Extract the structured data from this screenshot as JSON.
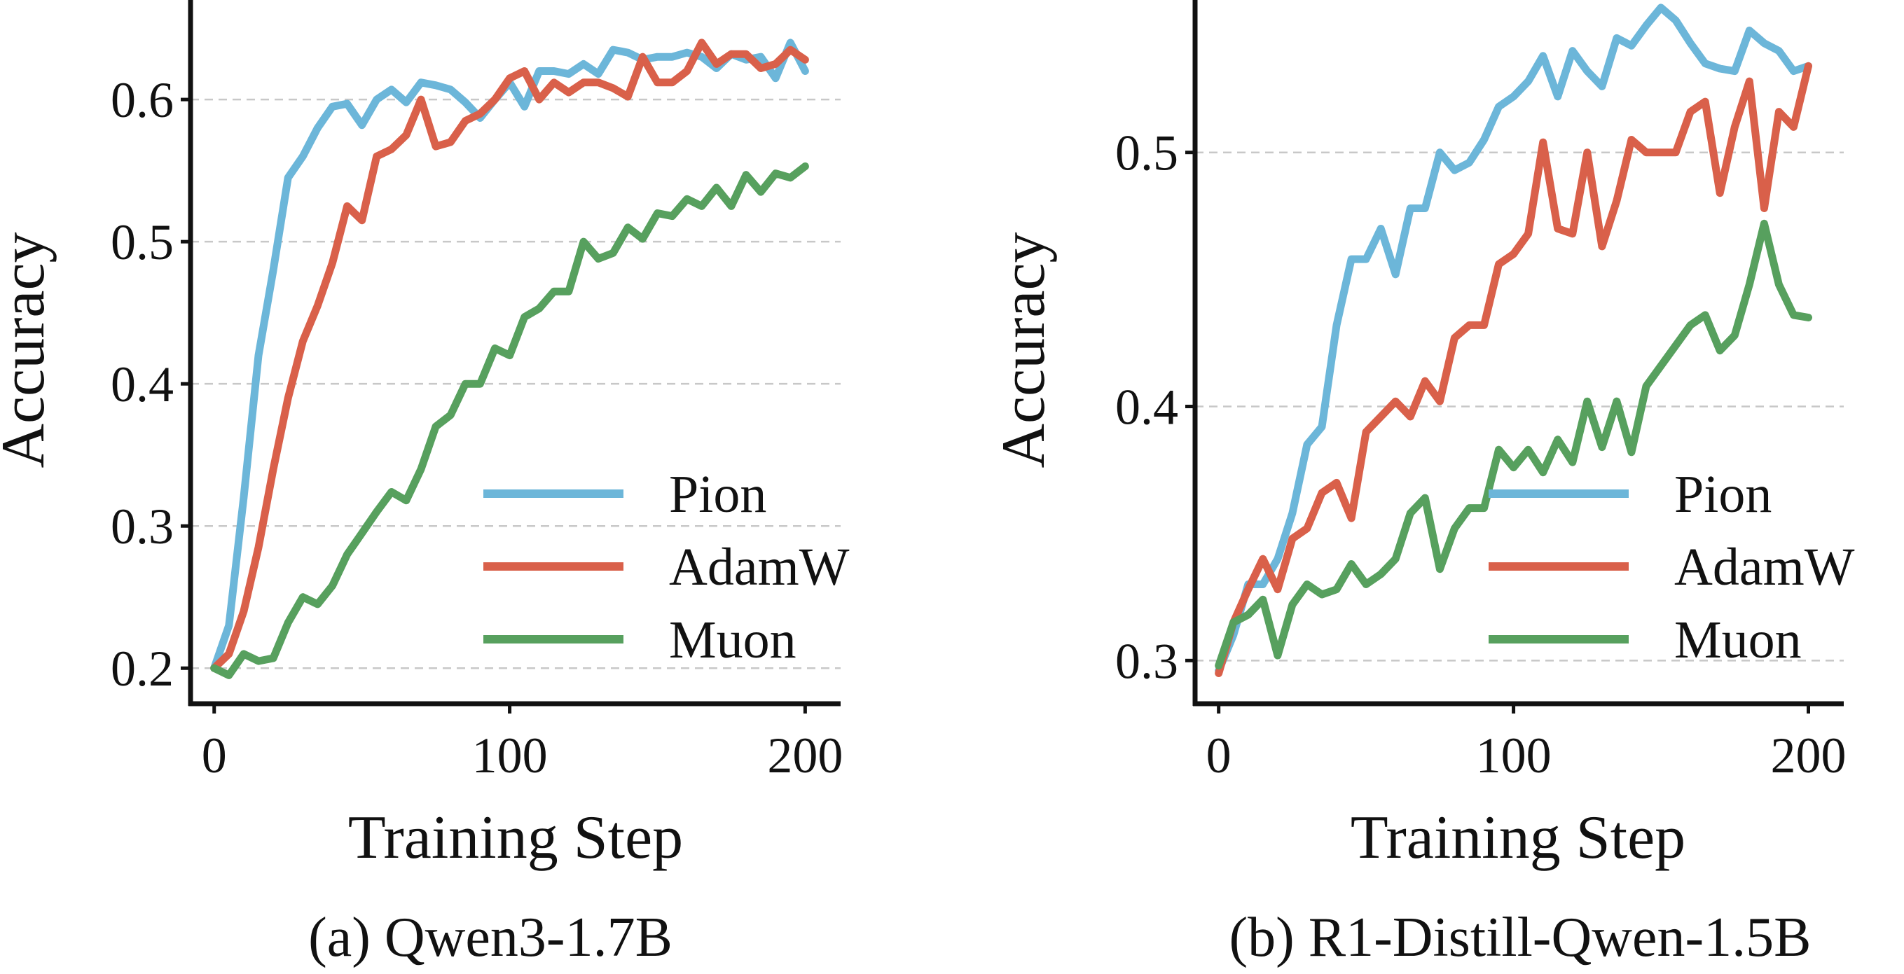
{
  "chart_data": [
    {
      "type": "line",
      "caption": "(a) Qwen3-1.7B",
      "xlabel": "Training Step",
      "ylabel": "Accuracy",
      "xlim": [
        -8,
        212
      ],
      "ylim": [
        0.175,
        0.67
      ],
      "xticks": [
        0,
        100,
        200
      ],
      "yticks": [
        0.2,
        0.3,
        0.4,
        0.5,
        0.6
      ],
      "ytick_labels": [
        "0.2",
        "0.3",
        "0.4",
        "0.5",
        "0.6"
      ],
      "grid": "horizontal dashed",
      "legend_position": "lower-right",
      "x": [
        0,
        5,
        10,
        15,
        20,
        25,
        30,
        35,
        40,
        45,
        50,
        55,
        60,
        65,
        70,
        75,
        80,
        85,
        90,
        95,
        100,
        105,
        110,
        115,
        120,
        125,
        130,
        135,
        140,
        145,
        150,
        155,
        160,
        165,
        170,
        175,
        180,
        185,
        190,
        195,
        200
      ],
      "series": [
        {
          "name": "Pion",
          "color": "#6cb6d9",
          "values": [
            0.2,
            0.23,
            0.32,
            0.42,
            0.48,
            0.545,
            0.56,
            0.58,
            0.595,
            0.597,
            0.582,
            0.6,
            0.607,
            0.598,
            0.612,
            0.61,
            0.607,
            0.598,
            0.587,
            0.6,
            0.612,
            0.595,
            0.62,
            0.62,
            0.618,
            0.625,
            0.618,
            0.635,
            0.633,
            0.628,
            0.63,
            0.63,
            0.633,
            0.63,
            0.622,
            0.632,
            0.628,
            0.63,
            0.615,
            0.64,
            0.62
          ]
        },
        {
          "name": "AdamW",
          "color": "#d9604a",
          "values": [
            0.2,
            0.21,
            0.24,
            0.285,
            0.34,
            0.39,
            0.43,
            0.455,
            0.485,
            0.525,
            0.515,
            0.56,
            0.565,
            0.575,
            0.6,
            0.567,
            0.57,
            0.585,
            0.59,
            0.6,
            0.615,
            0.62,
            0.6,
            0.612,
            0.605,
            0.612,
            0.612,
            0.608,
            0.602,
            0.63,
            0.612,
            0.612,
            0.62,
            0.64,
            0.625,
            0.632,
            0.632,
            0.622,
            0.625,
            0.635,
            0.628
          ]
        },
        {
          "name": "Muon",
          "color": "#57a05e",
          "values": [
            0.2,
            0.195,
            0.21,
            0.205,
            0.207,
            0.232,
            0.25,
            0.245,
            0.258,
            0.28,
            0.295,
            0.31,
            0.324,
            0.318,
            0.34,
            0.37,
            0.378,
            0.4,
            0.4,
            0.425,
            0.42,
            0.447,
            0.453,
            0.465,
            0.465,
            0.5,
            0.488,
            0.492,
            0.51,
            0.502,
            0.52,
            0.518,
            0.53,
            0.525,
            0.538,
            0.525,
            0.547,
            0.535,
            0.548,
            0.545,
            0.553
          ]
        }
      ]
    },
    {
      "type": "line",
      "caption": "(b) R1-Distill-Qwen-1.5B",
      "xlabel": "Training Step",
      "ylabel": "Accuracy",
      "xlim": [
        -8,
        212
      ],
      "ylim": [
        0.283,
        0.56
      ],
      "xticks": [
        0,
        100,
        200
      ],
      "yticks": [
        0.3,
        0.4,
        0.5
      ],
      "ytick_labels": [
        "0.3",
        "0.4",
        "0.5"
      ],
      "grid": "horizontal dashed",
      "legend_position": "lower-right",
      "x": [
        0,
        5,
        10,
        15,
        20,
        25,
        30,
        35,
        40,
        45,
        50,
        55,
        60,
        65,
        70,
        75,
        80,
        85,
        90,
        95,
        100,
        105,
        110,
        115,
        120,
        125,
        130,
        135,
        140,
        145,
        150,
        155,
        160,
        165,
        170,
        175,
        180,
        185,
        190,
        195,
        200
      ],
      "series": [
        {
          "name": "Pion",
          "color": "#6cb6d9",
          "values": [
            0.296,
            0.31,
            0.33,
            0.33,
            0.34,
            0.358,
            0.385,
            0.392,
            0.432,
            0.458,
            0.458,
            0.47,
            0.452,
            0.478,
            0.478,
            0.5,
            0.493,
            0.496,
            0.505,
            0.518,
            0.522,
            0.528,
            0.538,
            0.522,
            0.54,
            0.532,
            0.526,
            0.545,
            0.542,
            0.55,
            0.557,
            0.552,
            0.543,
            0.535,
            0.533,
            0.532,
            0.548,
            0.543,
            0.54,
            0.532,
            0.534
          ]
        },
        {
          "name": "AdamW",
          "color": "#d9604a",
          "values": [
            0.295,
            0.315,
            0.328,
            0.34,
            0.328,
            0.348,
            0.352,
            0.366,
            0.37,
            0.356,
            0.39,
            0.396,
            0.402,
            0.396,
            0.41,
            0.402,
            0.427,
            0.432,
            0.432,
            0.456,
            0.46,
            0.468,
            0.504,
            0.47,
            0.468,
            0.5,
            0.463,
            0.481,
            0.505,
            0.5,
            0.5,
            0.5,
            0.516,
            0.52,
            0.484,
            0.51,
            0.528,
            0.478,
            0.516,
            0.51,
            0.534
          ]
        },
        {
          "name": "Muon",
          "color": "#57a05e",
          "values": [
            0.298,
            0.315,
            0.318,
            0.324,
            0.302,
            0.322,
            0.33,
            0.326,
            0.328,
            0.338,
            0.33,
            0.334,
            0.34,
            0.358,
            0.364,
            0.336,
            0.352,
            0.36,
            0.36,
            0.383,
            0.376,
            0.383,
            0.374,
            0.387,
            0.378,
            0.402,
            0.384,
            0.402,
            0.382,
            0.408,
            0.416,
            0.424,
            0.432,
            0.436,
            0.422,
            0.428,
            0.448,
            0.472,
            0.448,
            0.436,
            0.435
          ]
        }
      ]
    }
  ]
}
